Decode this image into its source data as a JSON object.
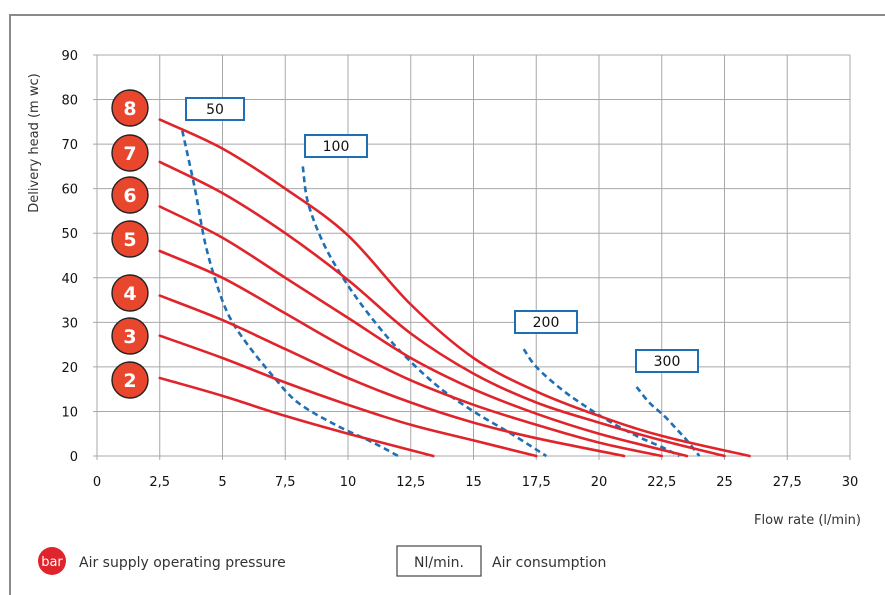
{
  "chart_data": {
    "type": "line",
    "xlabel": "Flow rate (l/min)",
    "ylabel": "Delivery head (m wc)",
    "xlim": [
      0,
      30
    ],
    "ylim": [
      0,
      90
    ],
    "x_ticks": [
      0,
      2.5,
      5,
      7.5,
      10,
      12.5,
      15,
      17.5,
      20,
      22.5,
      25,
      27.5,
      30
    ],
    "x_tick_labels": [
      "0",
      "2,5",
      "5",
      "7,5",
      "10",
      "12,5",
      "15",
      "17,5",
      "20",
      "22,5",
      "25",
      "27,5",
      "30"
    ],
    "y_ticks": [
      0,
      10,
      20,
      30,
      40,
      50,
      60,
      70,
      80,
      90
    ],
    "y_tick_labels": [
      "0",
      "10",
      "20",
      "30",
      "40",
      "50",
      "60",
      "70",
      "80",
      "90"
    ],
    "grid": true,
    "pressure_curves": [
      {
        "label": "8",
        "points": [
          [
            2.5,
            75.5
          ],
          [
            5,
            69
          ],
          [
            7.5,
            60
          ],
          [
            10,
            49.5
          ],
          [
            12.5,
            34
          ],
          [
            15,
            22
          ],
          [
            17.5,
            14.5
          ],
          [
            20,
            9
          ],
          [
            22.5,
            4.5
          ],
          [
            26,
            0
          ]
        ]
      },
      {
        "label": "7",
        "points": [
          [
            2.5,
            66
          ],
          [
            5,
            59
          ],
          [
            7.5,
            50
          ],
          [
            10,
            39.5
          ],
          [
            12.5,
            27.5
          ],
          [
            15,
            18.5
          ],
          [
            17.5,
            12
          ],
          [
            20,
            7.5
          ],
          [
            22.5,
            3.5
          ],
          [
            25,
            0
          ]
        ]
      },
      {
        "label": "6",
        "points": [
          [
            2.5,
            56
          ],
          [
            5,
            49
          ],
          [
            7.5,
            40
          ],
          [
            10,
            31
          ],
          [
            12.5,
            22
          ],
          [
            15,
            15
          ],
          [
            17.5,
            9.5
          ],
          [
            20,
            5
          ],
          [
            23.5,
            0
          ]
        ]
      },
      {
        "label": "5",
        "points": [
          [
            2.5,
            46
          ],
          [
            5,
            40
          ],
          [
            7.5,
            32
          ],
          [
            10,
            24
          ],
          [
            12.5,
            17
          ],
          [
            15,
            11.5
          ],
          [
            17.5,
            7
          ],
          [
            20,
            3
          ],
          [
            22.5,
            0
          ]
        ]
      },
      {
        "label": "4",
        "points": [
          [
            2.5,
            36
          ],
          [
            5,
            30.5
          ],
          [
            7.5,
            24
          ],
          [
            10,
            17.5
          ],
          [
            12.5,
            12
          ],
          [
            15,
            7.5
          ],
          [
            17.5,
            4
          ],
          [
            21,
            0
          ]
        ]
      },
      {
        "label": "3",
        "points": [
          [
            2.5,
            27
          ],
          [
            5,
            22
          ],
          [
            7.5,
            16.5
          ],
          [
            10,
            11.5
          ],
          [
            12.5,
            7
          ],
          [
            15,
            3.5
          ],
          [
            17.5,
            0
          ]
        ]
      },
      {
        "label": "2",
        "points": [
          [
            2.5,
            17.5
          ],
          [
            5,
            13.5
          ],
          [
            7.5,
            9
          ],
          [
            10,
            5
          ],
          [
            13.4,
            0
          ]
        ]
      }
    ],
    "consumption_curves": [
      {
        "label": "50",
        "points": [
          [
            3.4,
            73
          ],
          [
            3.9,
            60
          ],
          [
            4.3,
            48
          ],
          [
            4.8,
            38
          ],
          [
            5.3,
            31
          ],
          [
            6,
            25
          ],
          [
            7,
            18
          ],
          [
            8,
            12
          ],
          [
            9.5,
            7
          ],
          [
            11,
            3
          ],
          [
            12,
            0
          ]
        ]
      },
      {
        "label": "100",
        "points": [
          [
            8.2,
            65
          ],
          [
            8.4,
            57
          ],
          [
            9,
            48
          ],
          [
            9.8,
            40
          ],
          [
            10.8,
            32
          ],
          [
            12,
            24
          ],
          [
            13.5,
            16
          ],
          [
            15,
            10
          ],
          [
            16.5,
            5
          ],
          [
            17.9,
            0
          ]
        ]
      },
      {
        "label": "200",
        "points": [
          [
            17,
            24
          ],
          [
            17.5,
            20
          ],
          [
            18.5,
            15
          ],
          [
            19.5,
            11
          ],
          [
            20.5,
            7.5
          ],
          [
            21.5,
            4.5
          ],
          [
            22.5,
            2
          ],
          [
            23.2,
            0
          ]
        ]
      },
      {
        "label": "300",
        "points": [
          [
            21.5,
            15.5
          ],
          [
            22,
            12
          ],
          [
            22.6,
            9
          ],
          [
            23.1,
            6
          ],
          [
            23.5,
            3.5
          ],
          [
            24,
            0
          ]
        ]
      }
    ],
    "pressure_badges": [
      "8",
      "7",
      "6",
      "5",
      "4",
      "3",
      "2"
    ],
    "consumption_boxes": [
      "50",
      "100",
      "200",
      "300"
    ]
  },
  "legend": {
    "bar_badge": "bar",
    "bar_text": "Air supply operating pressure",
    "box_label": "Nl/min.",
    "box_text": "Air consumption"
  },
  "colors": {
    "pressure_curve": "#e0242b",
    "consumption_curve": "#1f6fb5",
    "badge_fill": "#e8462d"
  }
}
